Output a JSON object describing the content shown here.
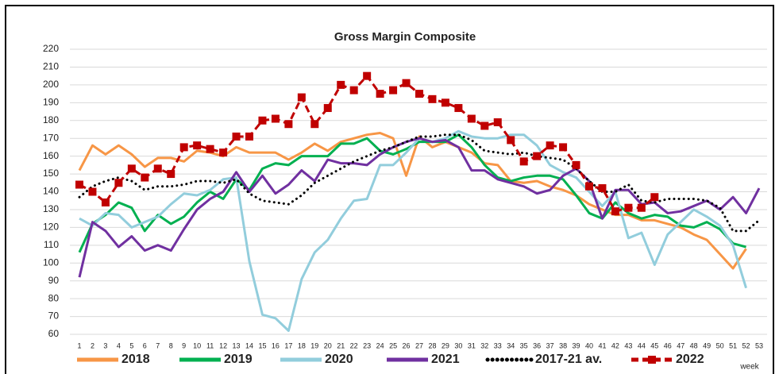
{
  "chart_data": {
    "type": "line",
    "title": "Gross Margin Composite",
    "x_label": "week",
    "x": [
      1,
      2,
      3,
      4,
      5,
      6,
      7,
      8,
      9,
      10,
      11,
      12,
      13,
      14,
      15,
      16,
      17,
      18,
      19,
      20,
      21,
      22,
      23,
      24,
      25,
      26,
      27,
      28,
      29,
      30,
      31,
      32,
      33,
      34,
      35,
      36,
      37,
      38,
      39,
      40,
      41,
      42,
      43,
      44,
      45,
      46,
      47,
      48,
      49,
      50,
      51,
      52,
      53
    ],
    "xlim": [
      1,
      53
    ],
    "ylim": [
      60,
      220
    ],
    "yticks": [
      60,
      70,
      80,
      90,
      100,
      110,
      120,
      130,
      140,
      150,
      160,
      170,
      180,
      190,
      200,
      210,
      220
    ],
    "grid": true,
    "series": [
      {
        "name": "2018",
        "color": "#f79646",
        "style": "solid",
        "values": [
          152,
          166,
          161,
          166,
          161,
          154,
          159,
          159,
          157,
          163,
          162,
          160,
          165,
          162,
          162,
          162,
          158,
          162,
          167,
          163,
          168,
          170,
          172,
          173,
          170,
          149,
          171,
          165,
          168,
          165,
          162,
          156,
          155,
          146,
          145,
          146,
          143,
          141,
          138,
          133,
          130,
          127,
          127,
          124,
          124,
          122,
          120,
          116,
          113,
          105,
          97,
          108,
          null
        ]
      },
      {
        "name": "2019",
        "color": "#00b050",
        "style": "solid",
        "values": [
          106,
          122,
          127,
          134,
          131,
          118,
          127,
          122,
          126,
          134,
          140,
          136,
          147,
          141,
          153,
          156,
          155,
          160,
          160,
          160,
          167,
          167,
          170,
          163,
          161,
          164,
          168,
          168,
          168,
          172,
          165,
          155,
          148,
          146,
          148,
          149,
          149,
          147,
          138,
          128,
          125,
          134,
          128,
          125,
          127,
          126,
          121,
          120,
          123,
          119,
          111,
          109,
          null
        ]
      },
      {
        "name": "2020",
        "color": "#92cddc",
        "style": "solid",
        "values": [
          125,
          121,
          128,
          127,
          120,
          123,
          126,
          133,
          139,
          138,
          141,
          147,
          148,
          101,
          71,
          69,
          62,
          91,
          106,
          113,
          125,
          135,
          136,
          155,
          155,
          162,
          170,
          168,
          170,
          174,
          171,
          170,
          170,
          172,
          172,
          166,
          155,
          151,
          148,
          140,
          132,
          140,
          114,
          117,
          99,
          116,
          123,
          130,
          126,
          121,
          110,
          86,
          null
        ]
      },
      {
        "name": "2021",
        "color": "#7030a0",
        "style": "solid",
        "values": [
          92,
          123,
          118,
          109,
          115,
          107,
          110,
          107,
          119,
          130,
          136,
          140,
          151,
          140,
          149,
          139,
          144,
          152,
          146,
          158,
          156,
          156,
          155,
          161,
          165,
          168,
          170,
          168,
          169,
          165,
          152,
          152,
          147,
          145,
          143,
          139,
          141,
          149,
          153,
          146,
          125,
          141,
          141,
          133,
          134,
          128,
          129,
          132,
          135,
          130,
          137,
          128,
          142
        ]
      },
      {
        "name": "2017-21 av.",
        "color": "#000000",
        "style": "dotted",
        "values": [
          137,
          143,
          146,
          148,
          146,
          141,
          143,
          143,
          144,
          146,
          146,
          145,
          147,
          139,
          135,
          134,
          133,
          138,
          145,
          149,
          153,
          157,
          160,
          163,
          165,
          168,
          171,
          171,
          172,
          172,
          169,
          163,
          162,
          161,
          162,
          160,
          159,
          158,
          153,
          146,
          140,
          140,
          144,
          135,
          134,
          136,
          136,
          136,
          135,
          131,
          118,
          118,
          124
        ]
      },
      {
        "name": "2022",
        "color": "#c00000",
        "style": "dashed-square",
        "values": [
          144,
          140,
          134,
          145,
          153,
          148,
          153,
          150,
          165,
          166,
          164,
          162,
          171,
          171,
          180,
          181,
          178,
          193,
          178,
          187,
          200,
          197,
          205,
          195,
          197,
          201,
          195,
          192,
          190,
          187,
          181,
          177,
          179,
          169,
          157,
          160,
          166,
          165,
          155,
          143,
          142,
          129,
          131,
          131,
          137,
          null,
          null,
          null,
          null,
          null,
          null,
          null,
          null
        ]
      }
    ]
  }
}
